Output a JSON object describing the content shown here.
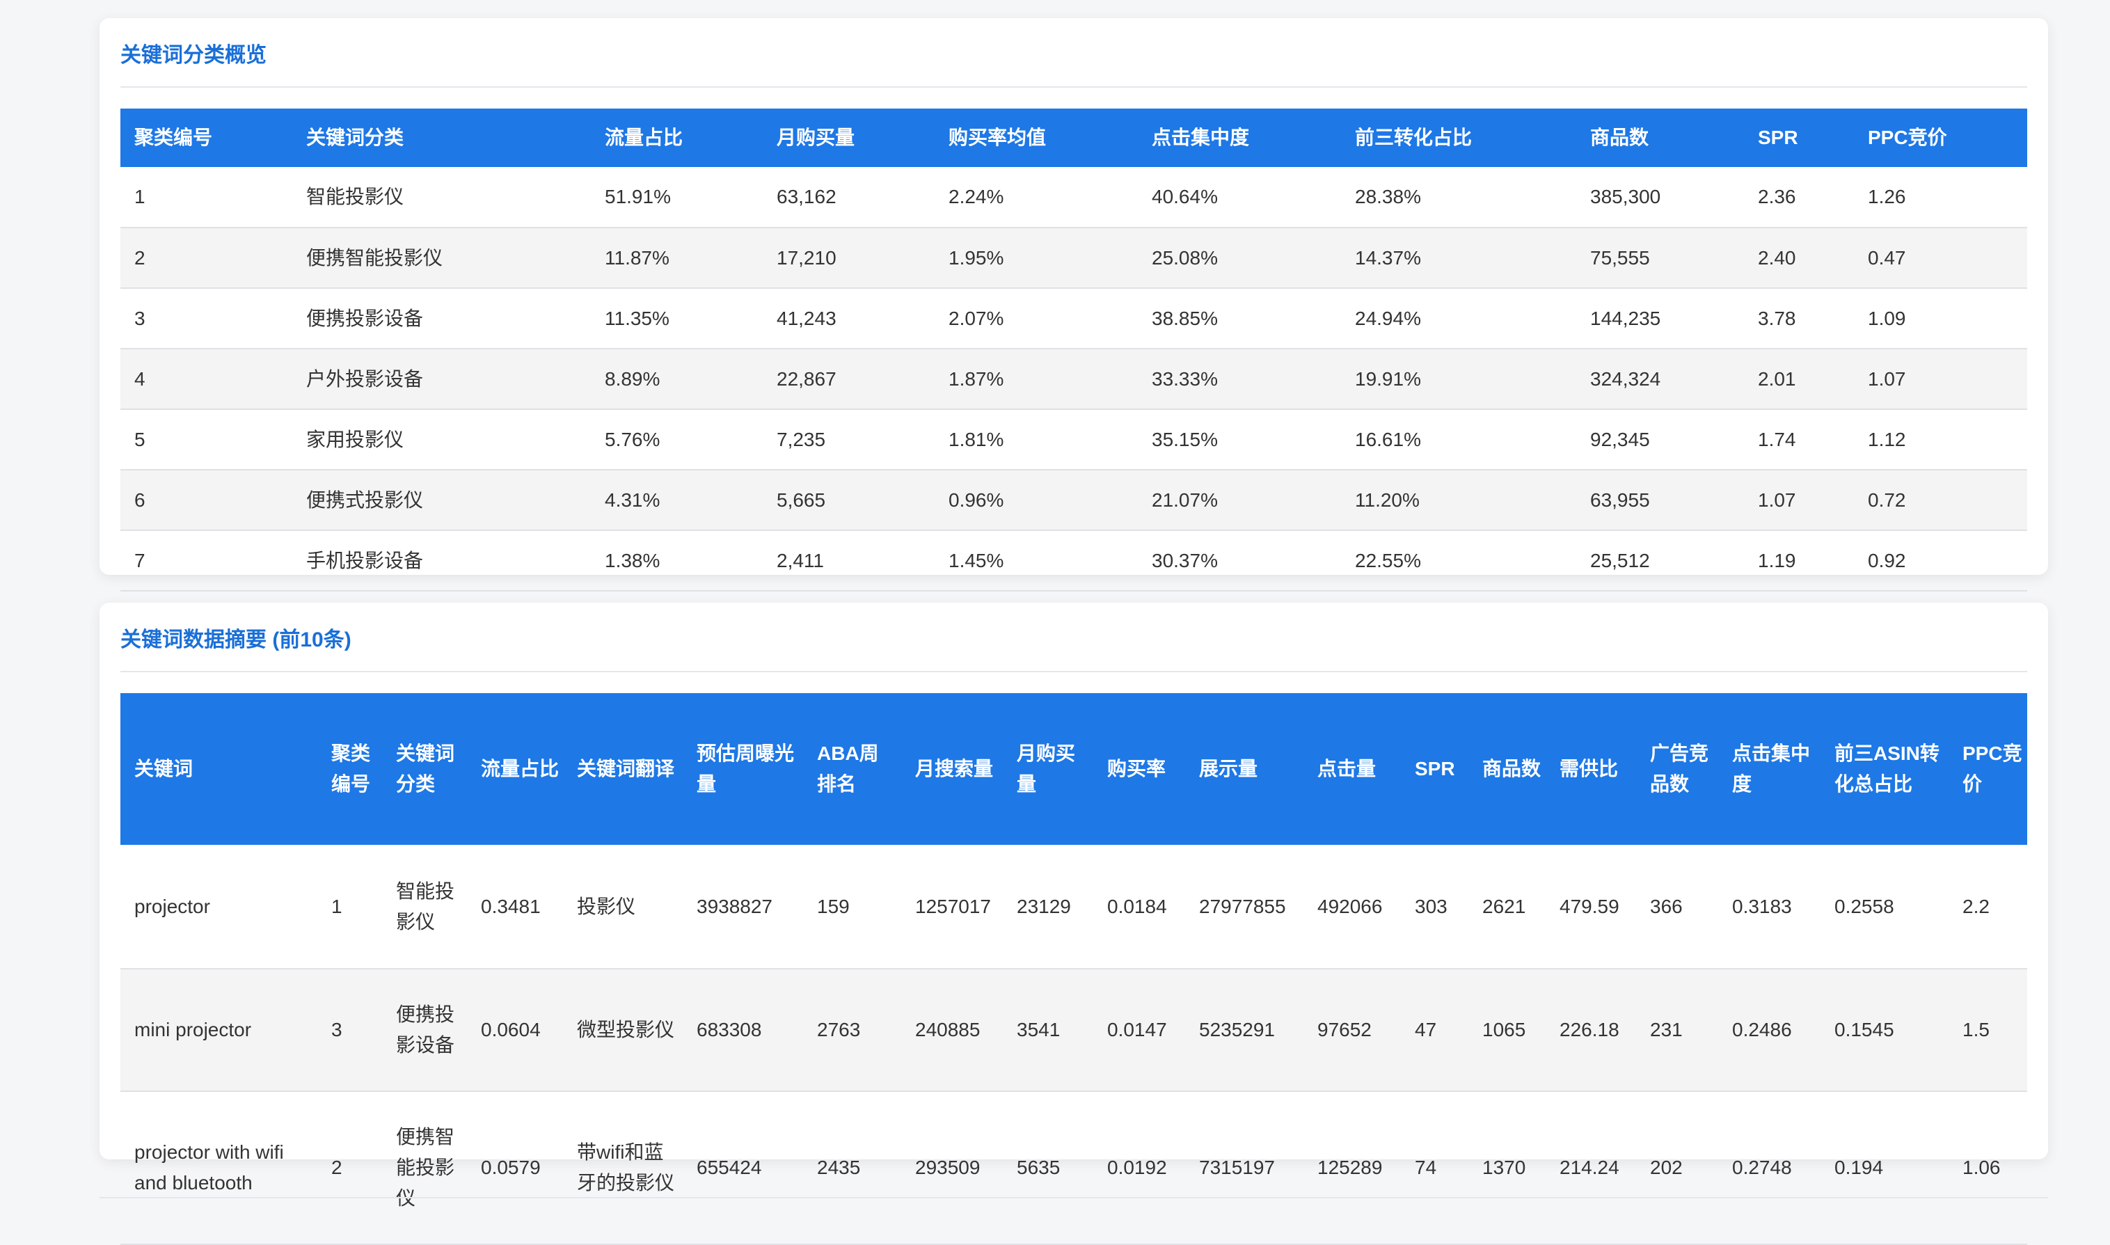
{
  "section1": {
    "title": "关键词分类概览",
    "headers": [
      "聚类编号",
      "关键词分类",
      "流量占比",
      "月购买量",
      "购买率均值",
      "点击集中度",
      "前三转化占比",
      "商品数",
      "SPR",
      "PPC竞价"
    ],
    "rows": [
      [
        "1",
        "智能投影仪",
        "51.91%",
        "63,162",
        "2.24%",
        "40.64%",
        "28.38%",
        "385,300",
        "2.36",
        "1.26"
      ],
      [
        "2",
        "便携智能投影仪",
        "11.87%",
        "17,210",
        "1.95%",
        "25.08%",
        "14.37%",
        "75,555",
        "2.40",
        "0.47"
      ],
      [
        "3",
        "便携投影设备",
        "11.35%",
        "41,243",
        "2.07%",
        "38.85%",
        "24.94%",
        "144,235",
        "3.78",
        "1.09"
      ],
      [
        "4",
        "户外投影设备",
        "8.89%",
        "22,867",
        "1.87%",
        "33.33%",
        "19.91%",
        "324,324",
        "2.01",
        "1.07"
      ],
      [
        "5",
        "家用投影仪",
        "5.76%",
        "7,235",
        "1.81%",
        "35.15%",
        "16.61%",
        "92,345",
        "1.74",
        "1.12"
      ],
      [
        "6",
        "便携式投影仪",
        "4.31%",
        "5,665",
        "0.96%",
        "21.07%",
        "11.20%",
        "63,955",
        "1.07",
        "0.72"
      ],
      [
        "7",
        "手机投影设备",
        "1.38%",
        "2,411",
        "1.45%",
        "30.37%",
        "22.55%",
        "25,512",
        "1.19",
        "0.92"
      ]
    ]
  },
  "section2": {
    "title": "关键词数据摘要 (前10条)",
    "headers": [
      "关键词",
      "聚类编号",
      "关键词分类",
      "流量占比",
      "关键词翻译",
      "预估周曝光量",
      "ABA周排名",
      "月搜索量",
      "月购买量",
      "购买率",
      "展示量",
      "点击量",
      "SPR",
      "商品数",
      "需供比",
      "广告竞品数",
      "点击集中度",
      "前三ASIN转化总占比",
      "PPC竞价"
    ],
    "rows": [
      [
        "projector",
        "1",
        "智能投影仪",
        "0.3481",
        "投影仪",
        "3938827",
        "159",
        "1257017",
        "23129",
        "0.0184",
        "27977855",
        "492066",
        "303",
        "2621",
        "479.59",
        "366",
        "0.3183",
        "0.2558",
        "2.2"
      ],
      [
        "mini projector",
        "3",
        "便携投影设备",
        "0.0604",
        "微型投影仪",
        "683308",
        "2763",
        "240885",
        "3541",
        "0.0147",
        "5235291",
        "97652",
        "47",
        "1065",
        "226.18",
        "231",
        "0.2486",
        "0.1545",
        "1.5"
      ],
      [
        "projector with wifi and bluetooth",
        "2",
        "便携智能投影仪",
        "0.0579",
        "带wifi和蓝牙的投影仪",
        "655424",
        "2435",
        "293509",
        "5635",
        "0.0192",
        "7315197",
        "125289",
        "74",
        "1370",
        "214.24",
        "202",
        "0.2748",
        "0.194",
        "1.06"
      ]
    ]
  }
}
